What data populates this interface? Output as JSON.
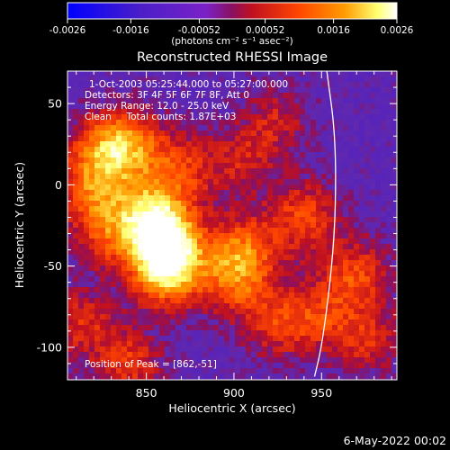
{
  "chart_data": {
    "type": "heatmap",
    "title": "Reconstructed RHESSI Image",
    "xlabel": "Heliocentric X (arcsec)",
    "ylabel": "Heliocentric Y (arcsec)",
    "xlim": [
      805,
      993
    ],
    "ylim": [
      -120,
      70
    ],
    "x_ticks": [
      850,
      900,
      950
    ],
    "y_ticks": [
      50,
      0,
      -50,
      -100
    ],
    "colorbar": {
      "min": -0.0026,
      "max": 0.0026,
      "tick_values": [
        -0.0026,
        -0.0016,
        -0.00052,
        0.00052,
        0.0016,
        0.0026
      ],
      "tick_labels": [
        "-0.0026",
        "-0.0016",
        "-0.00052",
        "0.00052",
        "0.0016",
        "0.0026"
      ],
      "unit_label": "(photons cm⁻² s⁻¹ asec⁻²)",
      "colors": [
        "#0000ff",
        "#5a1fd0",
        "#8a2be2",
        "#c8102e",
        "#ff4500",
        "#ff9900",
        "#ffff80",
        "#ffffff"
      ]
    },
    "annotations": [
      "1-Oct-2003 05:25:44.000 to 05:27:00.000",
      "Detectors: 3F 4F 5F 6F 7F 8F, Att 0",
      "Energy Range: 12.0 - 25.0 keV",
      "Clean     Total counts: 1.87E+03"
    ],
    "peak_label": "Position of Peak = [862,-51]",
    "peak": {
      "x": 862,
      "y": -51
    },
    "limb_curve": [
      {
        "x": 953,
        "y": 70
      },
      {
        "x": 958,
        "y": 30
      },
      {
        "x": 958,
        "y": -20
      },
      {
        "x": 955,
        "y": -60
      },
      {
        "x": 950,
        "y": -100
      },
      {
        "x": 946,
        "y": -118
      }
    ],
    "sources": [
      {
        "x": 862,
        "y": -51,
        "value": 0.0026
      },
      {
        "x": 860,
        "y": -30,
        "value": 0.0021
      },
      {
        "x": 840,
        "y": 25,
        "value": 0.0015
      },
      {
        "x": 825,
        "y": 20,
        "value": 0.0013
      },
      {
        "x": 818,
        "y": -5,
        "value": 0.0012
      },
      {
        "x": 850,
        "y": -15,
        "value": 0.0012
      },
      {
        "x": 830,
        "y": -30,
        "value": 0.0011
      },
      {
        "x": 870,
        "y": 10,
        "value": 0.0011
      },
      {
        "x": 905,
        "y": -40,
        "value": 0.0014
      },
      {
        "x": 900,
        "y": -60,
        "value": 0.0012
      },
      {
        "x": 925,
        "y": -85,
        "value": 0.001
      },
      {
        "x": 940,
        "y": -20,
        "value": 0.0013
      },
      {
        "x": 948,
        "y": -80,
        "value": 0.0009
      },
      {
        "x": 970,
        "y": -55,
        "value": 0.0012
      },
      {
        "x": 975,
        "y": -95,
        "value": 0.001
      },
      {
        "x": 840,
        "y": -110,
        "value": 0.0011
      },
      {
        "x": 812,
        "y": -85,
        "value": 0.001
      },
      {
        "x": 905,
        "y": 15,
        "value": 0.0008
      },
      {
        "x": 925,
        "y": 40,
        "value": 0.0008
      }
    ]
  },
  "footer": {
    "date": "6-May-2022 00:02"
  }
}
